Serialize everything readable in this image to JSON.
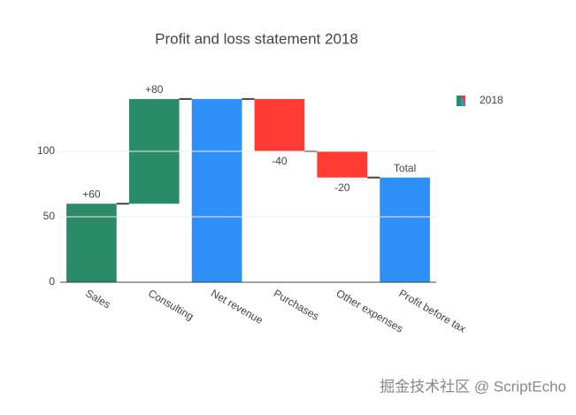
{
  "chart_data": {
    "type": "waterfall",
    "title": "Profit and loss statement 2018",
    "categories": [
      "Sales",
      "Consulting",
      "Net revenue",
      "Purchases",
      "Other expenses",
      "Profit before tax"
    ],
    "measure": [
      "relative",
      "relative",
      "total",
      "relative",
      "relative",
      "total"
    ],
    "values": [
      60,
      80,
      140,
      -40,
      -20,
      80
    ],
    "value_labels": [
      "+60",
      "+80",
      null,
      "-40",
      "-20",
      null
    ],
    "total_label": "Total",
    "series_name": "2018",
    "colors": {
      "increasing": "#2a8c66",
      "decreasing": "#ff3b33",
      "total": "#2e8ff8"
    },
    "ylim": [
      0,
      146
    ],
    "yticks": [
      0,
      50,
      100
    ],
    "grid": true,
    "legend": "top-right"
  },
  "watermark": "掘金技术社区 @ ScriptEcho"
}
